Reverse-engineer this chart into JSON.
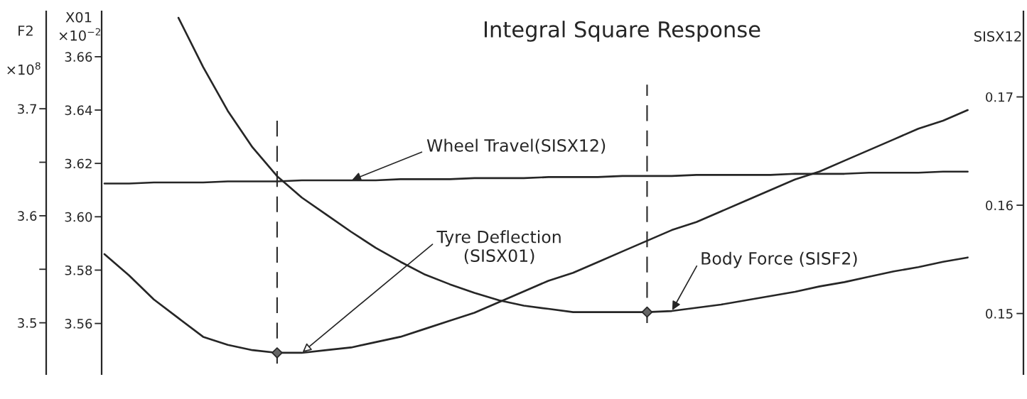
{
  "chart_data": {
    "type": "line",
    "title": "Integral Square Response",
    "ylabel": "X01\n×10$^{−2}$",
    "y2label": "SISX12",
    "y3label": "F2\n×10$^{8}$",
    "categories": [
      null,
      null,
      null,
      null,
      null,
      null,
      null,
      null,
      null,
      null,
      null,
      null,
      null,
      null,
      null,
      null,
      null,
      null,
      null,
      null,
      null,
      null,
      null,
      null,
      null,
      null,
      null,
      null,
      null,
      null,
      null,
      null,
      null,
      null,
      null,
      null
    ],
    "ylim": [
      3.541,
      3.677
    ],
    "yticks": [
      3.56,
      3.58,
      {
        "value": 3.6,
        "label": "3.60"
      },
      3.62,
      3.64,
      3.66
    ],
    "y2lim": [
      0.1444,
      0.1779
    ],
    "y2ticks": [
      0.15,
      0.16,
      0.17
    ],
    "y3lim": [
      3.452,
      3.791
    ],
    "y3ticks": [
      3.5,
      {
        "value": 3.55,
        "label": null
      },
      3.6,
      {
        "value": 3.65,
        "label": null
      },
      3.7
    ],
    "tick_labels": "y",
    "series": [
      {
        "name": "Wheel Travel(SISX12)",
        "color": "#262626",
        "axis": "y2",
        "values": [
          0.162,
          0.162,
          0.1621,
          0.1621,
          0.1621,
          0.1622,
          0.1622,
          0.1622,
          0.1623,
          0.1623,
          0.1623,
          0.1623,
          0.1624,
          0.1624,
          0.1624,
          0.1625,
          0.1625,
          0.1625,
          0.1626,
          0.1626,
          0.1626,
          0.1627,
          0.1627,
          0.1627,
          0.1628,
          0.1628,
          0.1628,
          0.1628,
          0.1629,
          0.1629,
          0.1629,
          0.163,
          0.163,
          0.163,
          0.1631,
          0.1631
        ]
      },
      {
        "name": "Tyre Deflection\n(SISX01)",
        "color": "#262626",
        "axis": "y",
        "values": [
          3.586,
          3.578,
          3.569,
          3.562,
          3.555,
          3.552,
          3.55,
          3.549,
          3.549,
          3.55,
          3.551,
          3.553,
          3.555,
          3.558,
          3.561,
          3.564,
          3.568,
          3.572,
          3.576,
          3.579,
          3.583,
          3.587,
          3.591,
          3.595,
          3.598,
          3.602,
          3.606,
          3.61,
          3.614,
          3.617,
          3.621,
          3.625,
          3.629,
          3.633,
          3.636,
          3.64
        ]
      },
      {
        "name": "Body Force (SISF2)",
        "color": "#262626",
        "axis": "y3",
        "values": [
          null,
          null,
          null,
          3.785,
          3.739,
          3.698,
          3.664,
          3.637,
          3.617,
          3.601,
          3.585,
          3.57,
          3.557,
          3.545,
          3.536,
          3.528,
          3.521,
          3.516,
          3.513,
          3.51,
          3.51,
          3.51,
          3.51,
          3.511,
          3.514,
          3.517,
          3.521,
          3.525,
          3.529,
          3.534,
          3.538,
          3.543,
          3.548,
          3.552,
          3.557,
          3.561
        ]
      },
      {
        "type": "scatter",
        "marker": "diamond",
        "color": "#666666",
        "axis": "y",
        "values": [
          null,
          null,
          null,
          null,
          null,
          null,
          null,
          3.549,
          null,
          null,
          null,
          null,
          null,
          null,
          null,
          null,
          null,
          null,
          null,
          null,
          null,
          null,
          null,
          null,
          null,
          null,
          null,
          null,
          null,
          null,
          null,
          null,
          null,
          null,
          null,
          null
        ]
      },
      {
        "type": "scatter",
        "marker": "diamond",
        "color": "#666666",
        "axis": "y3",
        "values": [
          null,
          null,
          null,
          null,
          null,
          null,
          null,
          null,
          null,
          null,
          null,
          null,
          null,
          null,
          null,
          null,
          null,
          null,
          null,
          null,
          null,
          null,
          3.51,
          null,
          null,
          null,
          null,
          null,
          null,
          null,
          null,
          null,
          null,
          null,
          null,
          null
        ]
      }
    ]
  }
}
